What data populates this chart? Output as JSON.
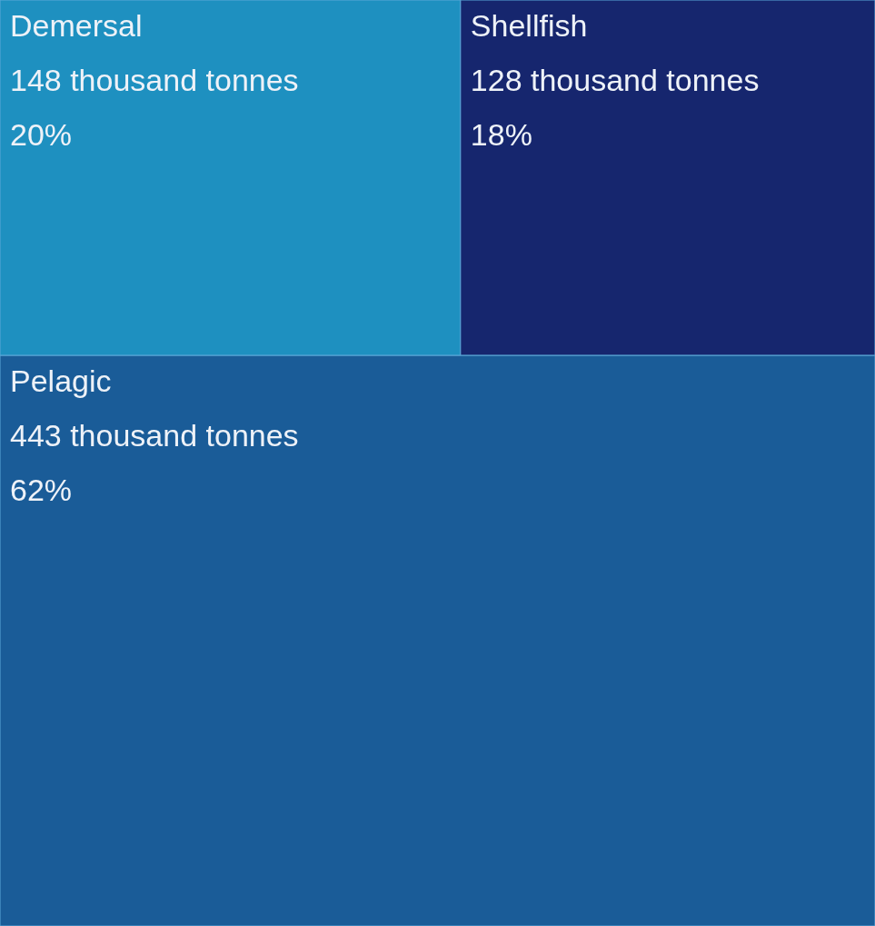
{
  "chart_data": {
    "type": "other",
    "categories": [
      "Demersal",
      "Shellfish",
      "Pelagic"
    ],
    "series": [
      {
        "colors": [
          "#1e90c0",
          "#16266e",
          "#1a5c98"
        ],
        "values": [
          148,
          128,
          443
        ],
        "value_labels": [
          "148 thousand tonnes",
          "128 thousand tonnes",
          "443 thousand tonnes"
        ]
      },
      {
        "values": [
          20,
          18,
          62
        ],
        "value_labels": [
          "20%",
          "18%",
          "62%"
        ]
      }
    ]
  }
}
